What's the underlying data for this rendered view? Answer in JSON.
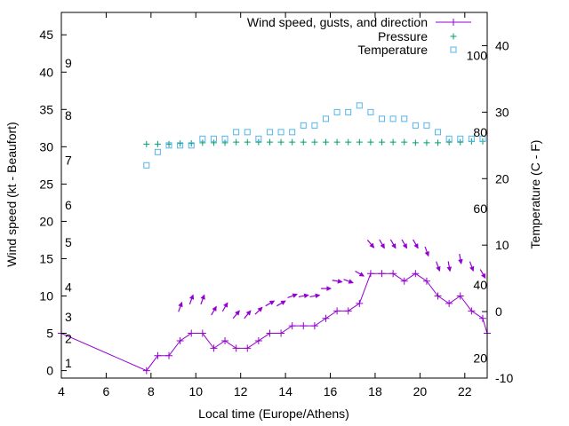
{
  "chart_data": {
    "type": "line",
    "xlabel": "Local time (Europe/Athens)",
    "ylabel": "Wind speed (kt - Beaufort)",
    "y2label": "Temperature (C - F)",
    "xlim": [
      4,
      23
    ],
    "ylim": [
      -1,
      48
    ],
    "y2lim": [
      -10,
      45
    ],
    "x_ticks": [
      4,
      6,
      8,
      10,
      12,
      14,
      16,
      18,
      20,
      22
    ],
    "y_ticks": [
      0,
      5,
      10,
      15,
      20,
      25,
      30,
      35,
      40,
      45
    ],
    "y2_ticks": [
      -10,
      0,
      10,
      20,
      30,
      40
    ],
    "beaufort_labels": [
      {
        "text": "1",
        "y": 1.0
      },
      {
        "text": "2",
        "y": 4.3
      },
      {
        "text": "3",
        "y": 7.2
      },
      {
        "text": "4",
        "y": 11.2
      },
      {
        "text": "5",
        "y": 17.2
      },
      {
        "text": "6",
        "y": 22.2
      },
      {
        "text": "7",
        "y": 28.2
      },
      {
        "text": "8",
        "y": 34.2
      },
      {
        "text": "9",
        "y": 41.2
      }
    ],
    "fahrenheit_labels": [
      {
        "text": "20",
        "y2": -7
      },
      {
        "text": "40",
        "y2": 4
      },
      {
        "text": "60",
        "y2": 15.5
      },
      {
        "text": "80",
        "y2": 27
      },
      {
        "text": "100",
        "y2": 38.5
      }
    ],
    "grid": false,
    "legend_position": "top-right",
    "series": [
      {
        "name": "Wind speed, gusts, and direction",
        "color": "#9400d3",
        "x": [
          4.0,
          7.8,
          8.3,
          8.8,
          9.3,
          9.8,
          10.3,
          10.8,
          11.3,
          11.8,
          12.3,
          12.8,
          13.3,
          13.8,
          14.3,
          14.8,
          15.3,
          15.8,
          16.3,
          16.8,
          17.3,
          17.8,
          18.3,
          18.8,
          19.3,
          19.8,
          20.3,
          20.8,
          21.3,
          21.8,
          22.3,
          22.8,
          23.0
        ],
        "y": [
          5,
          0,
          2,
          2,
          4,
          5,
          5,
          3,
          4,
          3,
          3,
          4,
          5,
          5,
          6,
          6,
          6,
          7,
          8,
          8,
          9,
          13,
          13,
          13,
          12,
          13,
          12,
          10,
          9,
          10,
          8,
          7,
          5
        ]
      },
      {
        "name": "Pressure",
        "color": "#009e73",
        "x": [
          7.8,
          8.3,
          8.8,
          9.3,
          9.8,
          10.3,
          10.8,
          11.3,
          11.8,
          12.3,
          12.8,
          13.3,
          13.8,
          14.3,
          14.8,
          15.3,
          15.8,
          16.3,
          16.8,
          17.3,
          17.8,
          18.3,
          18.8,
          19.3,
          19.8,
          20.3,
          20.8,
          21.3,
          21.8,
          22.3,
          22.8
        ],
        "y2": [
          25.2,
          25.2,
          25.2,
          25.3,
          25.3,
          25.4,
          25.4,
          25.4,
          25.5,
          25.5,
          25.5,
          25.5,
          25.5,
          25.5,
          25.5,
          25.5,
          25.5,
          25.5,
          25.5,
          25.5,
          25.5,
          25.5,
          25.5,
          25.5,
          25.4,
          25.4,
          25.4,
          25.5,
          25.5,
          25.6,
          25.6
        ]
      },
      {
        "name": "Temperature",
        "color": "#56b4e9",
        "x": [
          7.8,
          8.3,
          8.8,
          9.3,
          9.8,
          10.3,
          10.8,
          11.3,
          11.8,
          12.3,
          12.8,
          13.3,
          13.8,
          14.3,
          14.8,
          15.3,
          15.8,
          16.3,
          16.8,
          17.3,
          17.8,
          18.3,
          18.8,
          19.3,
          19.8,
          20.3,
          20.8,
          21.3,
          21.8,
          22.3,
          22.8
        ],
        "y2": [
          22,
          24,
          25,
          25,
          25,
          26,
          26,
          26,
          27,
          27,
          26,
          27,
          27,
          27,
          28,
          28,
          29,
          30,
          30,
          31,
          30,
          29,
          29,
          29,
          28,
          28,
          27,
          26,
          26,
          26,
          26
        ]
      }
    ],
    "gust_arrows": {
      "color": "#9400d3",
      "x": [
        9.3,
        9.8,
        10.3,
        10.8,
        11.3,
        11.8,
        12.3,
        12.8,
        13.3,
        13.8,
        14.3,
        14.8,
        15.3,
        15.8,
        16.3,
        16.8,
        17.3,
        17.8,
        18.3,
        18.8,
        19.3,
        19.8,
        20.3,
        20.8,
        21.3,
        21.8,
        22.3,
        22.8
      ],
      "y": [
        8.5,
        9.5,
        9.5,
        8,
        8.5,
        7.5,
        7.5,
        8,
        9,
        9,
        10,
        10,
        10,
        11,
        12,
        12,
        13,
        17,
        17,
        17,
        17,
        17,
        16,
        14,
        14,
        15,
        14,
        13
      ],
      "direction_deg": [
        20,
        20,
        20,
        30,
        30,
        40,
        40,
        45,
        60,
        60,
        70,
        80,
        80,
        90,
        100,
        110,
        120,
        140,
        150,
        150,
        150,
        150,
        160,
        160,
        170,
        170,
        160,
        150
      ]
    }
  }
}
